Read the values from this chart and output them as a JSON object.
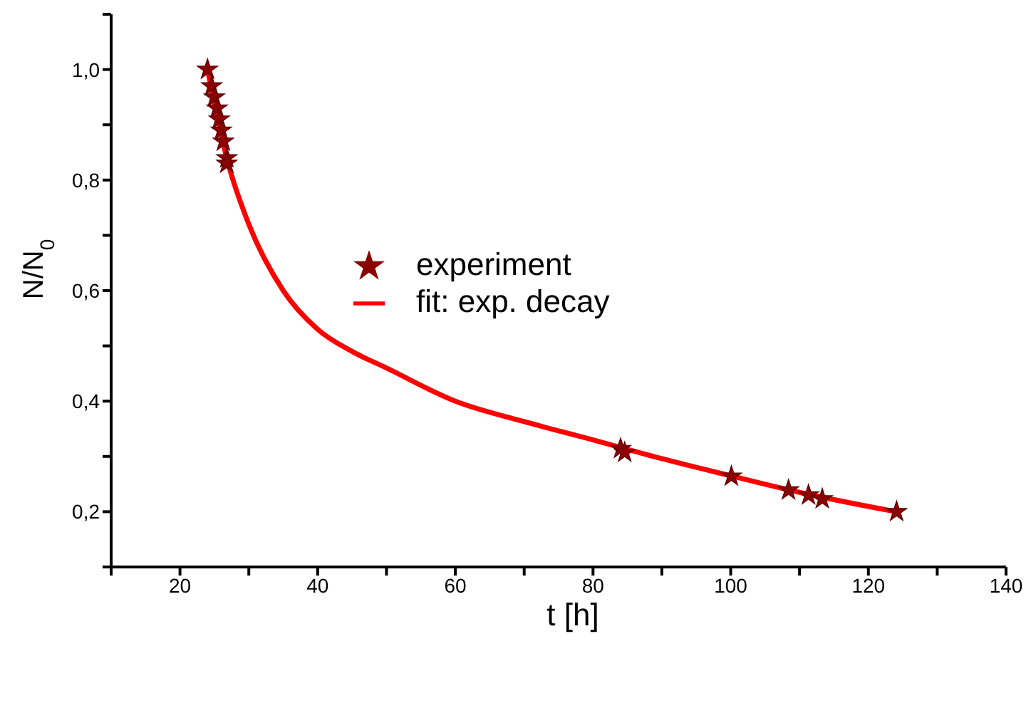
{
  "chart_data": {
    "type": "scatter",
    "xlabel": "t [h]",
    "ylabel": "N/N$_{0}$",
    "xlim": [
      10,
      140
    ],
    "ylim": [
      0.1,
      1.1
    ],
    "xticks": [
      {
        "value": 10,
        "label": null
      },
      {
        "value": 20,
        "label": "20"
      },
      {
        "value": 30,
        "label": null
      },
      {
        "value": 40,
        "label": "40"
      },
      {
        "value": 50,
        "label": null
      },
      {
        "value": 60,
        "label": "60"
      },
      {
        "value": 70,
        "label": null
      },
      {
        "value": 80,
        "label": "80"
      },
      {
        "value": 90,
        "label": null
      },
      {
        "value": 100,
        "label": "100"
      },
      {
        "value": 110,
        "label": null
      },
      {
        "value": 120,
        "label": "120"
      },
      {
        "value": 130,
        "label": null
      },
      {
        "value": 140,
        "label": "140"
      }
    ],
    "yticks": [
      {
        "value": 0.1,
        "label": null
      },
      {
        "value": 0.2,
        "label": "0,2"
      },
      {
        "value": 0.3,
        "label": null
      },
      {
        "value": 0.4,
        "label": "0,4"
      },
      {
        "value": 0.5,
        "label": null
      },
      {
        "value": 0.6,
        "label": "0,6"
      },
      {
        "value": 0.7,
        "label": null
      },
      {
        "value": 0.8,
        "label": "0,8"
      },
      {
        "value": 0.9,
        "label": null
      },
      {
        "value": 1.0,
        "label": "1,0"
      },
      {
        "value": 1.1,
        "label": null
      }
    ],
    "grid": false,
    "legend": "center",
    "series": [
      {
        "name": "experiment",
        "marker": "star",
        "color": "#8b0000",
        "x": [
          24.0,
          24.6,
          25.0,
          25.4,
          25.7,
          26.0,
          26.3,
          26.8,
          26.8,
          84.0,
          84.6,
          100.1,
          108.4,
          111.3,
          113.3,
          124.1
        ],
        "values": [
          1.0,
          0.97,
          0.95,
          0.93,
          0.91,
          0.89,
          0.87,
          0.84,
          0.83,
          0.314,
          0.307,
          0.264,
          0.239,
          0.23,
          0.223,
          0.2
        ]
      },
      {
        "name": "fit: exp. decay",
        "type": "line",
        "marker": "none",
        "line_style": "solid",
        "color": "#ff0000",
        "x": [
          24,
          27,
          30,
          35,
          40,
          45,
          50,
          60,
          70,
          80,
          90,
          100,
          110,
          124
        ],
        "values": [
          1.0,
          0.83,
          0.72,
          0.6,
          0.53,
          0.49,
          0.46,
          0.4,
          0.363,
          0.33,
          0.296,
          0.265,
          0.235,
          0.2
        ]
      }
    ]
  }
}
